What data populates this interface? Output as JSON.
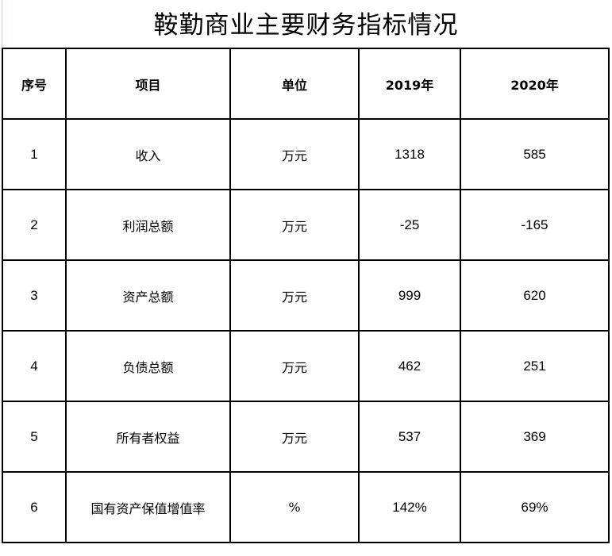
{
  "title": "鞍勤商业主要财务指标情况",
  "headers": [
    "序号",
    "项目",
    "单位",
    "2019年",
    "2020年"
  ],
  "rows": [
    {
      "no": "1",
      "item": "收入",
      "unit": "万元",
      "y2019": "1318",
      "y2020": "585"
    },
    {
      "no": "2",
      "item": "利润总额",
      "unit": "万元",
      "y2019": "-25",
      "y2020": "-165"
    },
    {
      "no": "3",
      "item": "资产总额",
      "unit": "万元",
      "y2019": "999",
      "y2020": "620"
    },
    {
      "no": "4",
      "item": "负债总额",
      "unit": "万元",
      "y2019": "462",
      "y2020": "251"
    },
    {
      "no": "5",
      "item": "所有者权益",
      "unit": "万元",
      "y2019": "537",
      "y2020": "369"
    },
    {
      "no": "6",
      "item": "国有资产保值增值率",
      "unit": "%",
      "y2019": "142%",
      "y2020": "69%"
    }
  ]
}
